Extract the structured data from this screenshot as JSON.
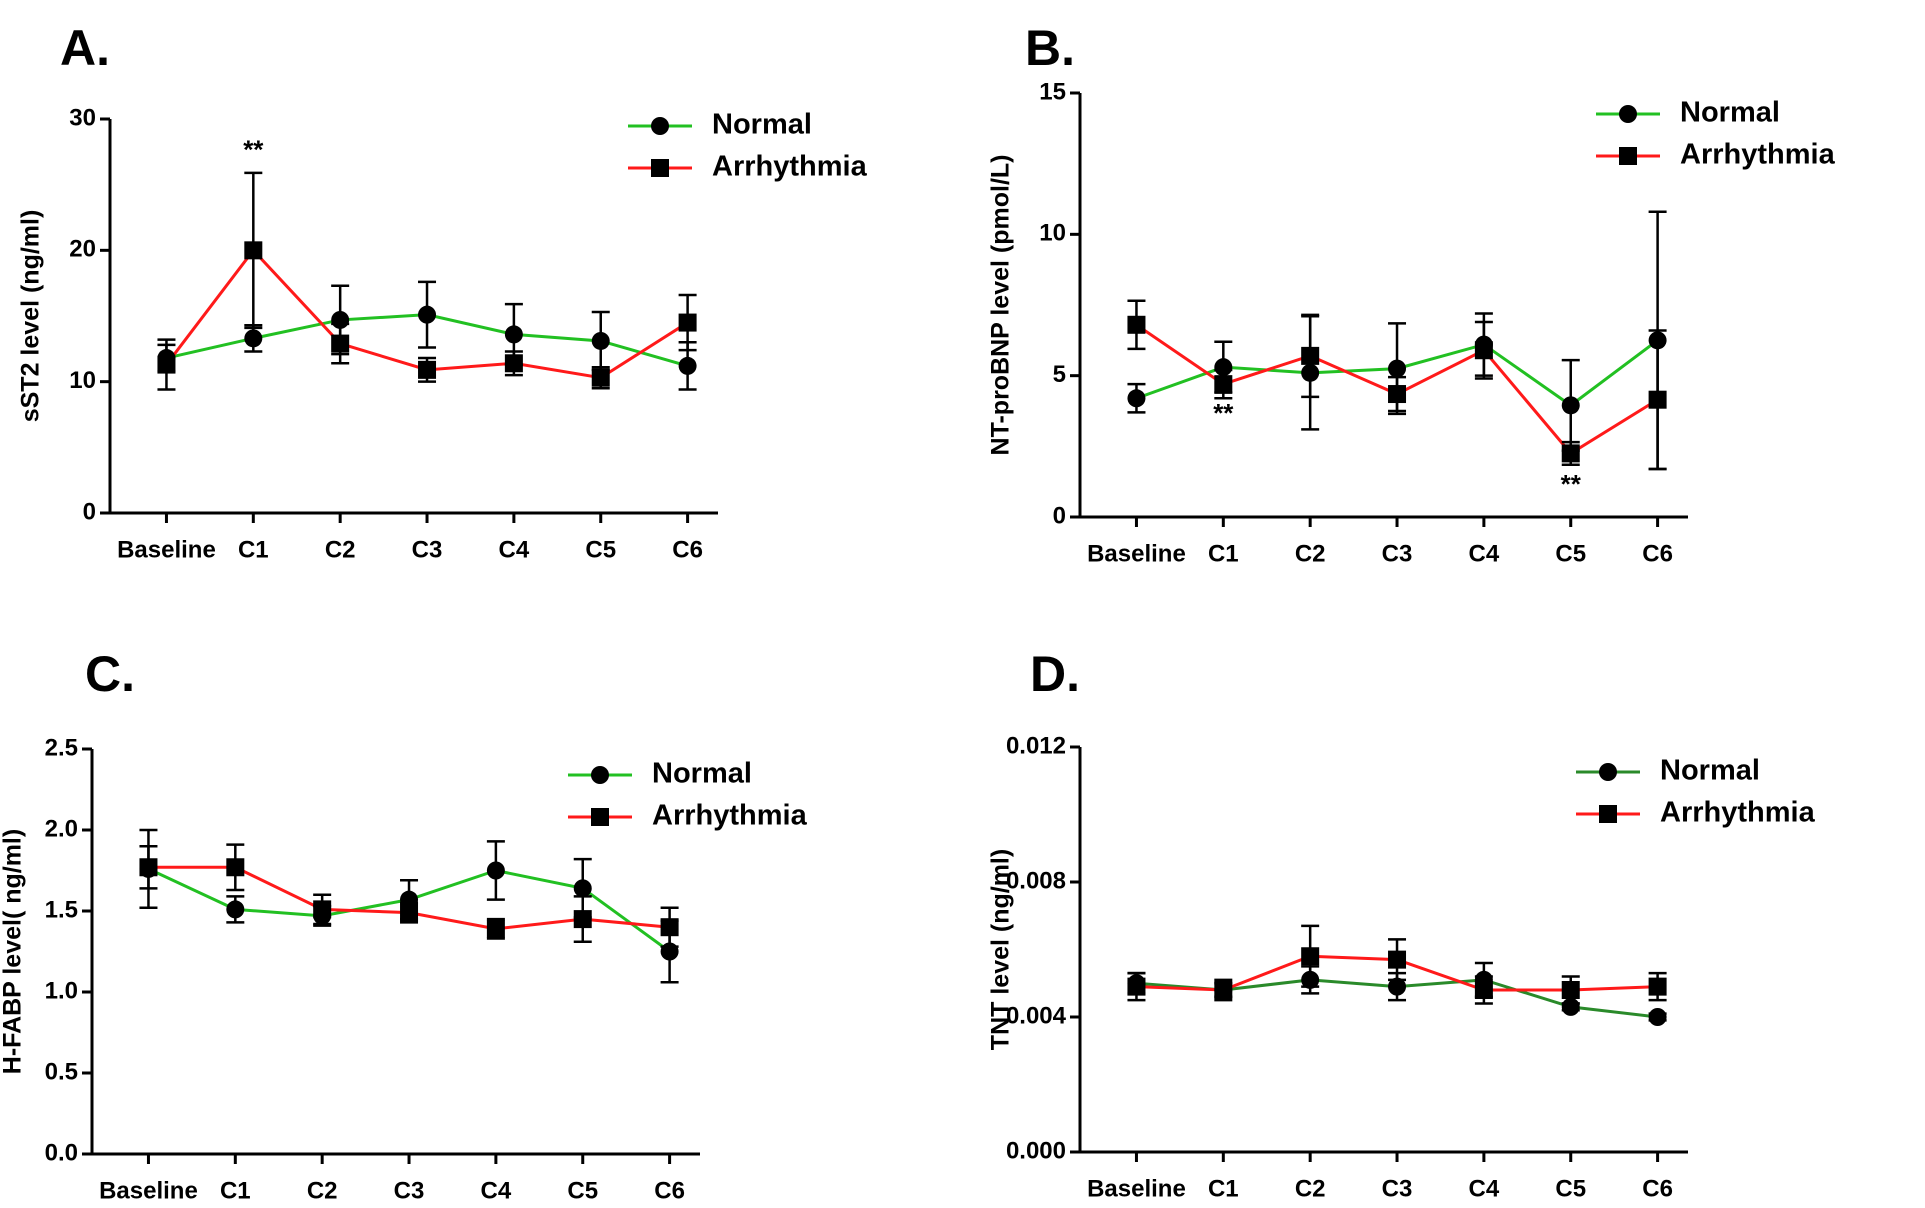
{
  "chart_data": [
    {
      "type": "line",
      "title": "A.",
      "y_label": "sST2 level (ng/ml)",
      "categories": [
        "Baseline",
        "C1",
        "C2",
        "C3",
        "C4",
        "C5",
        "C6"
      ],
      "ylim": [
        0,
        30
      ],
      "yticks": [
        0,
        10,
        20,
        30
      ],
      "series": [
        {
          "name": "Normal",
          "color": "#22c022",
          "marker": "circle",
          "values": [
            11.8,
            13.3,
            14.7,
            15.1,
            13.6,
            13.1,
            11.2
          ],
          "errors": [
            1.0,
            1.0,
            2.6,
            2.5,
            2.3,
            2.2,
            1.8
          ]
        },
        {
          "name": "Arrhythmia",
          "color": "#ff1a1a",
          "marker": "square",
          "values": [
            11.3,
            20.0,
            12.9,
            10.9,
            11.4,
            10.3,
            14.5
          ],
          "errors": [
            1.9,
            5.9,
            1.5,
            0.9,
            0.9,
            0.8,
            2.1
          ]
        }
      ],
      "annotations": [
        {
          "text": "**",
          "x": "C1",
          "y": 27.5
        }
      ]
    },
    {
      "type": "line",
      "title": "B.",
      "y_label": "NT-proBNP level (pmol/L)",
      "categories": [
        "Baseline",
        "C1",
        "C2",
        "C3",
        "C4",
        "C5",
        "C6"
      ],
      "ylim": [
        0,
        15
      ],
      "yticks": [
        0,
        5,
        10,
        15
      ],
      "series": [
        {
          "name": "Normal",
          "color": "#22c022",
          "marker": "circle",
          "values": [
            4.2,
            5.3,
            5.1,
            5.25,
            6.1,
            3.95,
            6.25
          ],
          "errors": [
            0.5,
            0.9,
            2.0,
            1.6,
            1.1,
            1.6,
            4.55
          ]
        },
        {
          "name": "Arrhythmia",
          "color": "#ff1a1a",
          "marker": "square",
          "values": [
            6.8,
            4.7,
            5.7,
            4.35,
            5.9,
            2.25,
            4.15
          ],
          "errors": [
            0.85,
            0.5,
            1.45,
            0.6,
            1.0,
            0.4,
            2.45
          ]
        }
      ],
      "annotations": [
        {
          "text": "**",
          "x": "C1",
          "y": 3.6
        },
        {
          "text": "**",
          "x": "C5",
          "y": 1.1
        }
      ]
    },
    {
      "type": "line",
      "title": "C.",
      "y_label": "H-FABP level( ng/ml)",
      "categories": [
        "Baseline",
        "C1",
        "C2",
        "C3",
        "C4",
        "C5",
        "C6"
      ],
      "ylim": [
        0,
        2.5
      ],
      "yticks": [
        {
          "value": 0,
          "label": "0.0"
        },
        0.5,
        {
          "value": 1,
          "label": "1.0"
        },
        1.5,
        {
          "value": 2,
          "label": "2.0"
        },
        2.5
      ],
      "series": [
        {
          "name": "Normal",
          "color": "#22c022",
          "marker": "circle",
          "values": [
            1.76,
            1.51,
            1.47,
            1.57,
            1.75,
            1.64,
            1.25
          ],
          "errors": [
            0.24,
            0.08,
            0.06,
            0.12,
            0.18,
            0.18,
            0.19
          ]
        },
        {
          "name": "Arrhythmia",
          "color": "#ff1a1a",
          "marker": "square",
          "values": [
            1.77,
            1.77,
            1.51,
            1.49,
            1.39,
            1.45,
            1.4
          ],
          "errors": [
            0.13,
            0.14,
            0.09,
            0.06,
            0.06,
            0.14,
            0.12
          ]
        }
      ]
    },
    {
      "type": "line",
      "title": "D.",
      "y_label": "TNT level (ng/ml)",
      "categories": [
        "Baseline",
        "C1",
        "C2",
        "C3",
        "C4",
        "C5",
        "C6"
      ],
      "ylim": [
        0,
        0.012
      ],
      "yticks": [
        {
          "value": 0,
          "label": "0.000"
        },
        0.004,
        0.008,
        0.012
      ],
      "series": [
        {
          "name": "Normal",
          "color": "#2a8a2a",
          "marker": "circle",
          "values": [
            0.005,
            0.0048,
            0.0051,
            0.0049,
            0.0051,
            0.0043,
            0.004
          ],
          "errors": [
            0.0003,
            0.0002,
            0.0004,
            0.0004,
            0.0005,
            0.0001,
            0.0001
          ]
        },
        {
          "name": "Arrhythmia",
          "color": "#ff1a1a",
          "marker": "square",
          "values": [
            0.0049,
            0.0048,
            0.0058,
            0.0057,
            0.0048,
            0.0048,
            0.0049
          ],
          "errors": [
            0.0004,
            0.0003,
            0.0009,
            0.0006,
            0.0004,
            0.0004,
            0.0004
          ]
        }
      ]
    }
  ]
}
